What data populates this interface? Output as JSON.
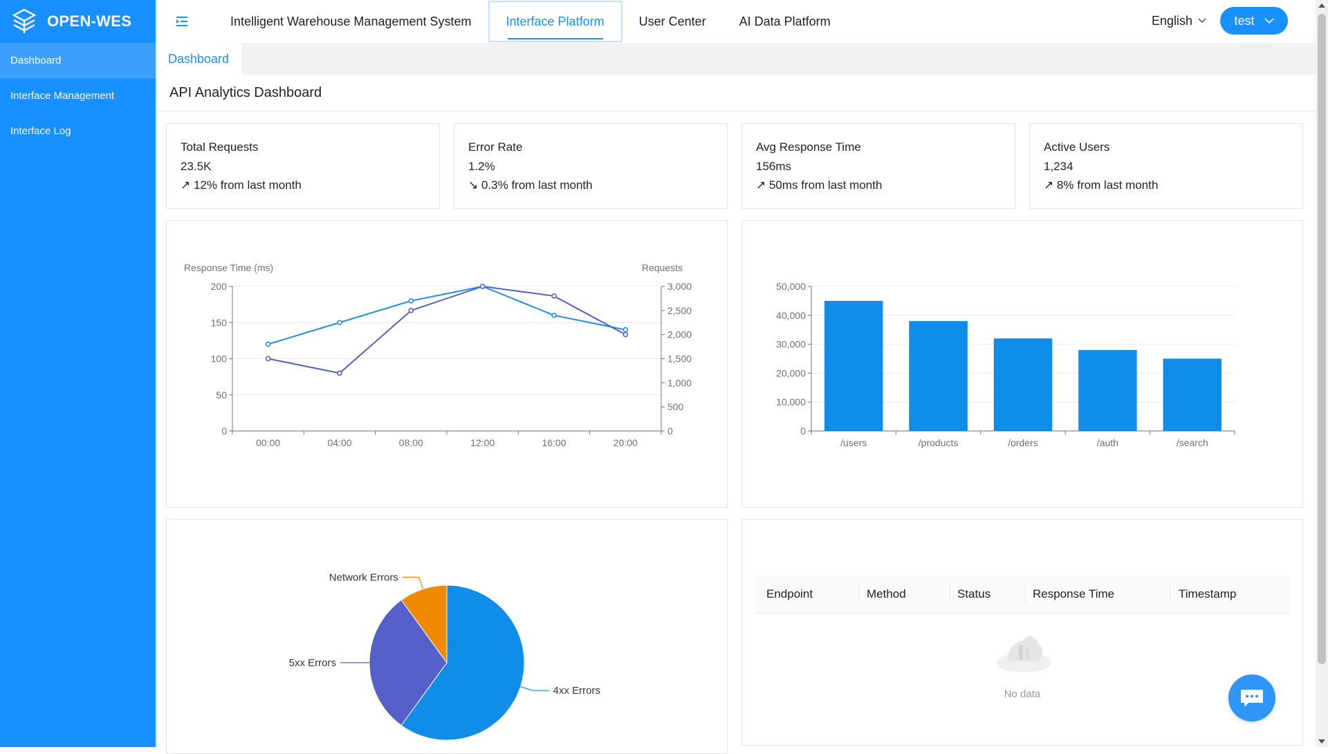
{
  "app": {
    "logo_text": "OPEN-WES"
  },
  "sidebar": {
    "items": [
      {
        "label": "Dashboard",
        "active": true
      },
      {
        "label": "Interface Management",
        "active": false
      },
      {
        "label": "Interface Log",
        "active": false
      }
    ]
  },
  "header": {
    "tabs": [
      {
        "label": "Intelligent Warehouse Management System",
        "active": false
      },
      {
        "label": "Interface Platform",
        "active": true
      },
      {
        "label": "User Center",
        "active": false
      },
      {
        "label": "AI Data Platform",
        "active": false
      }
    ],
    "language": "English",
    "user": "test"
  },
  "breadcrumb": {
    "tab": "Dashboard"
  },
  "page": {
    "title": "API Analytics Dashboard"
  },
  "stats": [
    {
      "label": "Total Requests",
      "value": "23.5K",
      "trend": "↗ 12% from last month"
    },
    {
      "label": "Error Rate",
      "value": "1.2%",
      "trend": "↘ 0.3% from last month"
    },
    {
      "label": "Avg Response Time",
      "value": "156ms",
      "trend": "↗ 50ms from last month"
    },
    {
      "label": "Active Users",
      "value": "1,234",
      "trend": "↗ 8% from last month"
    }
  ],
  "colors": {
    "primary": "#1890ff",
    "series_a": "#1e8fe6",
    "series_b": "#5460c9",
    "pie_4xx": "#0f8de8",
    "pie_5xx": "#5560c8",
    "pie_network": "#f08a00"
  },
  "chart_data": [
    {
      "type": "line",
      "x": [
        "00:00",
        "04:00",
        "08:00",
        "12:00",
        "16:00",
        "20:00"
      ],
      "ylabel": "Response Time (ms)",
      "y2label": "Requests",
      "ylim": [
        0,
        200
      ],
      "y2lim": [
        0,
        3000
      ],
      "yticks": [
        0,
        50,
        100,
        150,
        200
      ],
      "y2ticks": [
        0,
        500,
        1000,
        1500,
        2000,
        2500,
        3000
      ],
      "y2tick_labels": [
        "0",
        "500",
        "1,000",
        "1,500",
        "2,000",
        "2,500",
        "3,000"
      ],
      "series": [
        {
          "axis": "left",
          "values": [
            120,
            150,
            180,
            200,
            160,
            140
          ]
        },
        {
          "axis": "right",
          "values": [
            1500,
            1200,
            2500,
            3000,
            2800,
            2000
          ]
        }
      ],
      "grid": true
    },
    {
      "type": "bar",
      "categories": [
        "/users",
        "/products",
        "/orders",
        "/auth",
        "/search"
      ],
      "values": [
        45000,
        38000,
        32000,
        28000,
        25000
      ],
      "ylim": [
        0,
        50000
      ],
      "yticks": [
        0,
        10000,
        20000,
        30000,
        40000,
        50000
      ],
      "ytick_labels": [
        "0",
        "10,000",
        "20,000",
        "30,000",
        "40,000",
        "50,000"
      ],
      "grid": true
    },
    {
      "type": "pie",
      "slices": [
        {
          "name": "4xx Errors",
          "value": 60
        },
        {
          "name": "5xx Errors",
          "value": 30
        },
        {
          "name": "Network Errors",
          "value": 10
        }
      ]
    }
  ],
  "table": {
    "columns": [
      "Endpoint",
      "Method",
      "Status",
      "Response Time",
      "Timestamp"
    ],
    "rows": [],
    "empty_text": "No data"
  }
}
